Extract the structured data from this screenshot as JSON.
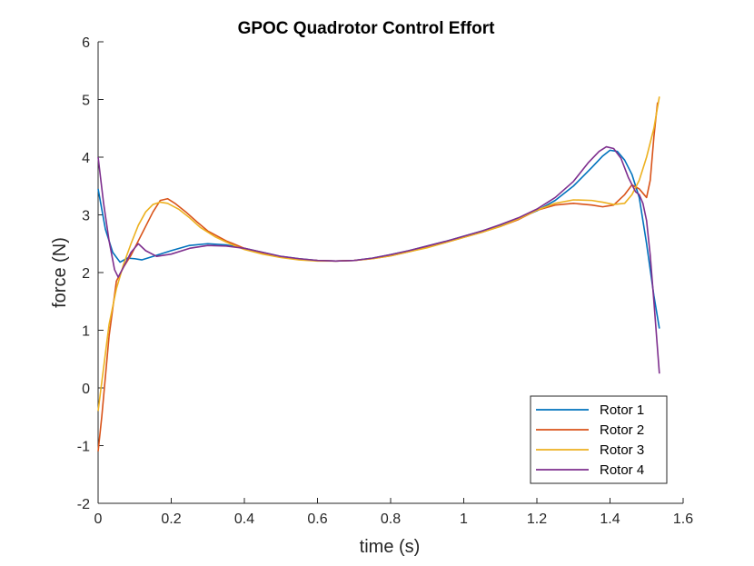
{
  "chart_data": {
    "type": "line",
    "title": "GPOC Quadrotor Control Effort",
    "xlabel": "time (s)",
    "ylabel": "force (N)",
    "xlim": [
      0,
      1.6
    ],
    "ylim": [
      -2,
      6
    ],
    "x_ticks": [
      0,
      0.2,
      0.4,
      0.6,
      0.8,
      1,
      1.2,
      1.4,
      1.6
    ],
    "x_tick_labels": [
      "0",
      "0.2",
      "0.4",
      "0.6",
      "0.8",
      "1",
      "1.2",
      "1.4",
      "1.6"
    ],
    "y_ticks": [
      -2,
      -1,
      0,
      1,
      2,
      3,
      4,
      5,
      6
    ],
    "y_tick_labels": [
      "-2",
      "-1",
      "0",
      "1",
      "2",
      "3",
      "4",
      "5",
      "6"
    ],
    "grid": false,
    "legend_position": "bottom-right",
    "series": [
      {
        "name": "Rotor 1",
        "color": "#0072BD",
        "points": [
          [
            0,
            3.45
          ],
          [
            0.02,
            2.75
          ],
          [
            0.04,
            2.35
          ],
          [
            0.06,
            2.18
          ],
          [
            0.08,
            2.25
          ],
          [
            0.1,
            2.24
          ],
          [
            0.12,
            2.22
          ],
          [
            0.15,
            2.28
          ],
          [
            0.2,
            2.38
          ],
          [
            0.25,
            2.47
          ],
          [
            0.3,
            2.5
          ],
          [
            0.35,
            2.48
          ],
          [
            0.4,
            2.42
          ],
          [
            0.45,
            2.35
          ],
          [
            0.5,
            2.28
          ],
          [
            0.55,
            2.24
          ],
          [
            0.6,
            2.21
          ],
          [
            0.65,
            2.2
          ],
          [
            0.7,
            2.21
          ],
          [
            0.75,
            2.25
          ],
          [
            0.8,
            2.31
          ],
          [
            0.85,
            2.38
          ],
          [
            0.9,
            2.46
          ],
          [
            0.95,
            2.54
          ],
          [
            1.0,
            2.63
          ],
          [
            1.05,
            2.72
          ],
          [
            1.1,
            2.82
          ],
          [
            1.15,
            2.94
          ],
          [
            1.2,
            3.07
          ],
          [
            1.25,
            3.25
          ],
          [
            1.3,
            3.5
          ],
          [
            1.35,
            3.82
          ],
          [
            1.38,
            4.02
          ],
          [
            1.4,
            4.12
          ],
          [
            1.42,
            4.1
          ],
          [
            1.44,
            3.95
          ],
          [
            1.46,
            3.7
          ],
          [
            1.48,
            3.3
          ],
          [
            1.5,
            2.5
          ],
          [
            1.52,
            1.6
          ],
          [
            1.535,
            1.03
          ]
        ]
      },
      {
        "name": "Rotor 2",
        "color": "#D95319",
        "points": [
          [
            0,
            -1.1
          ],
          [
            0.01,
            -0.5
          ],
          [
            0.03,
            0.9
          ],
          [
            0.05,
            1.85
          ],
          [
            0.07,
            2.1
          ],
          [
            0.09,
            2.3
          ],
          [
            0.11,
            2.55
          ],
          [
            0.13,
            2.8
          ],
          [
            0.15,
            3.05
          ],
          [
            0.17,
            3.25
          ],
          [
            0.19,
            3.28
          ],
          [
            0.21,
            3.2
          ],
          [
            0.24,
            3.05
          ],
          [
            0.27,
            2.88
          ],
          [
            0.3,
            2.72
          ],
          [
            0.35,
            2.55
          ],
          [
            0.4,
            2.42
          ],
          [
            0.45,
            2.33
          ],
          [
            0.5,
            2.27
          ],
          [
            0.55,
            2.23
          ],
          [
            0.6,
            2.21
          ],
          [
            0.65,
            2.2
          ],
          [
            0.7,
            2.21
          ],
          [
            0.75,
            2.24
          ],
          [
            0.8,
            2.29
          ],
          [
            0.85,
            2.36
          ],
          [
            0.9,
            2.44
          ],
          [
            0.95,
            2.52
          ],
          [
            1.0,
            2.61
          ],
          [
            1.05,
            2.7
          ],
          [
            1.1,
            2.8
          ],
          [
            1.15,
            2.92
          ],
          [
            1.2,
            3.08
          ],
          [
            1.25,
            3.17
          ],
          [
            1.3,
            3.2
          ],
          [
            1.35,
            3.17
          ],
          [
            1.38,
            3.14
          ],
          [
            1.41,
            3.17
          ],
          [
            1.44,
            3.35
          ],
          [
            1.46,
            3.52
          ],
          [
            1.48,
            3.45
          ],
          [
            1.5,
            3.3
          ],
          [
            1.51,
            3.6
          ],
          [
            1.52,
            4.35
          ],
          [
            1.53,
            4.95
          ]
        ]
      },
      {
        "name": "Rotor 3",
        "color": "#EDB120",
        "points": [
          [
            0,
            -0.4
          ],
          [
            0.01,
            0.1
          ],
          [
            0.03,
            1.1
          ],
          [
            0.05,
            1.72
          ],
          [
            0.07,
            2.15
          ],
          [
            0.09,
            2.5
          ],
          [
            0.11,
            2.82
          ],
          [
            0.13,
            3.05
          ],
          [
            0.15,
            3.18
          ],
          [
            0.17,
            3.22
          ],
          [
            0.19,
            3.2
          ],
          [
            0.22,
            3.1
          ],
          [
            0.25,
            2.95
          ],
          [
            0.28,
            2.78
          ],
          [
            0.32,
            2.62
          ],
          [
            0.36,
            2.5
          ],
          [
            0.4,
            2.4
          ],
          [
            0.45,
            2.32
          ],
          [
            0.5,
            2.26
          ],
          [
            0.55,
            2.22
          ],
          [
            0.6,
            2.2
          ],
          [
            0.65,
            2.2
          ],
          [
            0.7,
            2.21
          ],
          [
            0.75,
            2.24
          ],
          [
            0.8,
            2.29
          ],
          [
            0.85,
            2.36
          ],
          [
            0.9,
            2.43
          ],
          [
            0.95,
            2.52
          ],
          [
            1.0,
            2.61
          ],
          [
            1.05,
            2.7
          ],
          [
            1.1,
            2.8
          ],
          [
            1.15,
            2.93
          ],
          [
            1.2,
            3.08
          ],
          [
            1.25,
            3.2
          ],
          [
            1.3,
            3.26
          ],
          [
            1.35,
            3.25
          ],
          [
            1.38,
            3.22
          ],
          [
            1.41,
            3.18
          ],
          [
            1.44,
            3.2
          ],
          [
            1.46,
            3.35
          ],
          [
            1.48,
            3.6
          ],
          [
            1.5,
            4.0
          ],
          [
            1.52,
            4.5
          ],
          [
            1.535,
            5.05
          ]
        ]
      },
      {
        "name": "Rotor 4",
        "color": "#7E2F8E",
        "points": [
          [
            0,
            4.0
          ],
          [
            0.015,
            3.2
          ],
          [
            0.03,
            2.55
          ],
          [
            0.045,
            2.05
          ],
          [
            0.055,
            1.92
          ],
          [
            0.07,
            2.1
          ],
          [
            0.09,
            2.35
          ],
          [
            0.11,
            2.5
          ],
          [
            0.13,
            2.38
          ],
          [
            0.16,
            2.28
          ],
          [
            0.2,
            2.32
          ],
          [
            0.25,
            2.42
          ],
          [
            0.3,
            2.47
          ],
          [
            0.35,
            2.46
          ],
          [
            0.4,
            2.42
          ],
          [
            0.45,
            2.35
          ],
          [
            0.5,
            2.28
          ],
          [
            0.55,
            2.24
          ],
          [
            0.6,
            2.21
          ],
          [
            0.65,
            2.2
          ],
          [
            0.7,
            2.21
          ],
          [
            0.75,
            2.25
          ],
          [
            0.8,
            2.31
          ],
          [
            0.85,
            2.38
          ],
          [
            0.9,
            2.46
          ],
          [
            0.95,
            2.54
          ],
          [
            1.0,
            2.63
          ],
          [
            1.05,
            2.72
          ],
          [
            1.1,
            2.83
          ],
          [
            1.15,
            2.95
          ],
          [
            1.2,
            3.1
          ],
          [
            1.25,
            3.3
          ],
          [
            1.3,
            3.58
          ],
          [
            1.34,
            3.9
          ],
          [
            1.37,
            4.1
          ],
          [
            1.39,
            4.18
          ],
          [
            1.41,
            4.15
          ],
          [
            1.43,
            3.98
          ],
          [
            1.45,
            3.65
          ],
          [
            1.47,
            3.4
          ],
          [
            1.48,
            3.35
          ],
          [
            1.49,
            3.2
          ],
          [
            1.5,
            2.9
          ],
          [
            1.51,
            2.3
          ],
          [
            1.52,
            1.5
          ],
          [
            1.535,
            0.25
          ]
        ]
      }
    ]
  }
}
